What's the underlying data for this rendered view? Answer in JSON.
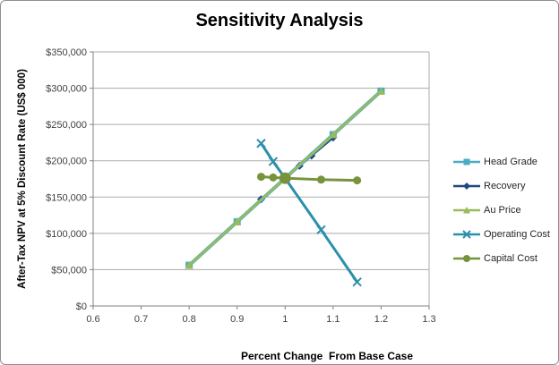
{
  "chart_data": {
    "type": "line",
    "title": "Sensitivity Analysis",
    "xlabel": "Percent Change  From Base Case",
    "ylabel": "After-Tax NPV at 5% Discount Rate (US$ 000)",
    "xlim": [
      0.6,
      1.3
    ],
    "ylim": [
      0,
      350000
    ],
    "x_ticks": [
      0.6,
      0.7,
      0.8,
      0.9,
      1,
      1.1,
      1.2,
      1.3
    ],
    "x_tick_labels": [
      "0.6",
      "0.7",
      "0.8",
      "0.9",
      "1",
      "1.1",
      "1.2",
      "1.3"
    ],
    "y_ticks": [
      0,
      50000,
      100000,
      150000,
      200000,
      250000,
      300000,
      350000
    ],
    "y_tick_labels": [
      "$0",
      "$50,000",
      "$100,000",
      "$150,000",
      "$200,000",
      "$250,000",
      "$300,000",
      "$350,000"
    ],
    "grid": "horizontal",
    "gridline_color": "#ABABAB",
    "axis_color": "#808080",
    "tick_label_color": "#404040",
    "legend_position": "right",
    "base_case": {
      "x": 1.0,
      "npv": 176000
    },
    "series": [
      {
        "name": "Head Grade",
        "color": "#4BACC6",
        "marker": "square",
        "line_width": 4,
        "x": [
          0.8,
          0.9,
          1.0,
          1.1,
          1.2
        ],
        "values": [
          56000,
          116000,
          176000,
          236000,
          296000
        ]
      },
      {
        "name": "Recovery",
        "color": "#1F497D",
        "marker": "diamond",
        "line_width": 2.5,
        "x": [
          0.95,
          1.0,
          1.03,
          1.055,
          1.1
        ],
        "values": [
          147000,
          176000,
          193000,
          207000,
          232000
        ]
      },
      {
        "name": "Au Price",
        "color": "#9BBB59",
        "marker": "triangle",
        "line_width": 2.6,
        "x": [
          0.8,
          0.9,
          1.0,
          1.1,
          1.2
        ],
        "values": [
          56000,
          116000,
          176000,
          236000,
          296000
        ]
      },
      {
        "name": "Operating Cost",
        "color": "#2C8FAC",
        "marker": "x",
        "line_width": 3,
        "x": [
          0.95,
          0.975,
          1.0,
          1.075,
          1.15
        ],
        "values": [
          224000,
          199000,
          176000,
          105000,
          33000
        ]
      },
      {
        "name": "Capital Cost",
        "color": "#77933C",
        "marker": "circle",
        "line_width": 3,
        "x": [
          0.95,
          0.975,
          1.0,
          1.075,
          1.15
        ],
        "values": [
          178000,
          177000,
          176000,
          174000,
          173000
        ],
        "marker_sizes": [
          4.5,
          4.5,
          6.5,
          4.5,
          4.5
        ]
      }
    ],
    "draw_order": [
      1,
      0,
      2,
      3,
      4
    ]
  }
}
